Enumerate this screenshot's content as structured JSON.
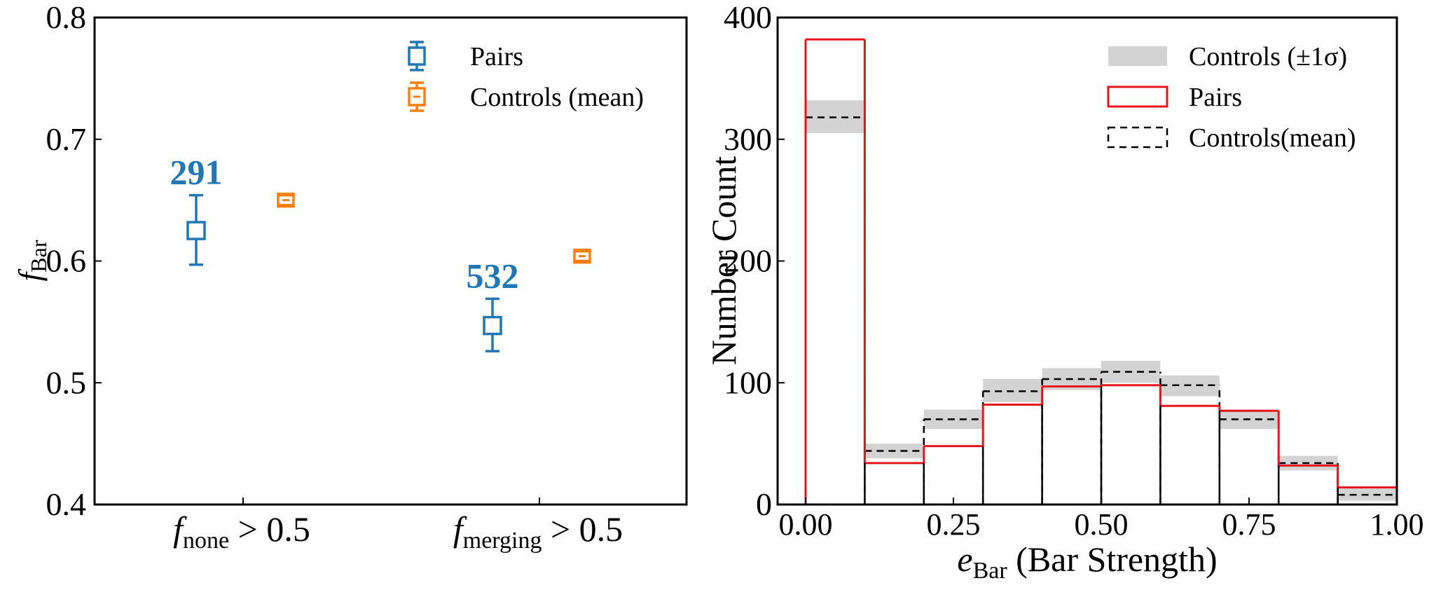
{
  "chart_data": [
    {
      "type": "scatter",
      "ylabel": {
        "main": "f",
        "sub": "Bar"
      },
      "ylim": [
        0.4,
        0.8
      ],
      "yticks": [
        "0.4",
        "0.5",
        "0.6",
        "0.7",
        "0.8"
      ],
      "categories": [
        {
          "main": "f",
          "sub": "none",
          "tail": " > 0.5"
        },
        {
          "main": "f",
          "sub": "merging",
          "tail": " > 0.5"
        }
      ],
      "series": [
        {
          "name": "Pairs",
          "color": "#1f77b4",
          "values": [
            0.625,
            0.547
          ],
          "err_low": [
            0.597,
            0.526
          ],
          "err_high": [
            0.654,
            0.569
          ],
          "annotations": [
            "291",
            "532"
          ]
        },
        {
          "name": "Controls (mean)",
          "color": "#ff7f0e",
          "values": [
            0.65,
            0.604
          ],
          "err_low": [
            0.646,
            0.6
          ],
          "err_high": [
            0.654,
            0.608
          ]
        }
      ],
      "legend_position": "top-right",
      "grid": false
    },
    {
      "type": "bar",
      "xlabel": {
        "main": "e",
        "sub": "Bar",
        "tail": " (Bar Strength)"
      },
      "ylabel": "Number Count",
      "xlim": [
        0,
        1
      ],
      "ylim": [
        0,
        400
      ],
      "xticks": [
        "0.00",
        "0.25",
        "0.50",
        "0.75",
        "1.00"
      ],
      "yticks": [
        "0",
        "100",
        "200",
        "300",
        "400"
      ],
      "bin_edges": [
        0,
        0.1,
        0.2,
        0.3,
        0.4,
        0.5,
        0.6,
        0.7,
        0.8,
        0.9,
        1.0
      ],
      "series": [
        {
          "name": "Pairs",
          "style": "step",
          "color": "#e8141b",
          "values": [
            382,
            34,
            48,
            82,
            97,
            98,
            81,
            77,
            32,
            14
          ]
        },
        {
          "name": "Controls(mean)",
          "style": "dashed",
          "color": "#000000",
          "values": [
            318,
            44,
            70,
            93,
            103,
            109,
            98,
            70,
            34,
            8
          ]
        },
        {
          "name": "Controls (±1σ)",
          "style": "band",
          "color": "#d3d3d3",
          "low": [
            305,
            38,
            62,
            84,
            94,
            100,
            89,
            62,
            28,
            3
          ],
          "high": [
            332,
            50,
            78,
            103,
            112,
            118,
            106,
            78,
            40,
            13
          ]
        }
      ],
      "legend_order": [
        "Controls (±1σ)",
        "Pairs",
        "Controls(mean)"
      ],
      "legend_position": "top-right",
      "grid": false
    }
  ]
}
